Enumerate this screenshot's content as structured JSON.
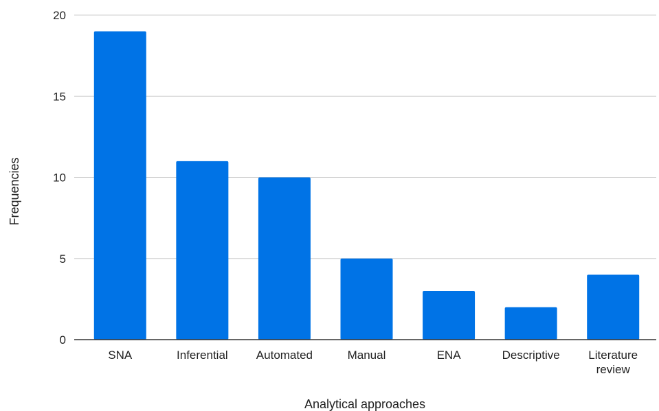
{
  "chart_data": {
    "type": "bar",
    "categories": [
      "SNA",
      "Inferential",
      "Automated",
      "Manual",
      "ENA",
      "Descriptive",
      "Literature review"
    ],
    "category_label_lines": [
      [
        "SNA"
      ],
      [
        "Inferential"
      ],
      [
        "Automated"
      ],
      [
        "Manual"
      ],
      [
        "ENA"
      ],
      [
        "Descriptive"
      ],
      [
        "Literature",
        "review"
      ]
    ],
    "values": [
      19,
      11,
      10,
      5,
      3,
      2,
      4
    ],
    "xlabel": "Analytical approaches",
    "ylabel": "Frequencies",
    "ylim": [
      0,
      20
    ],
    "yticks": [
      0,
      5,
      10,
      15,
      20
    ],
    "grid": true,
    "bar_color": "#0073e6",
    "grid_color": "#cccccc",
    "axis_color": "#333333"
  }
}
